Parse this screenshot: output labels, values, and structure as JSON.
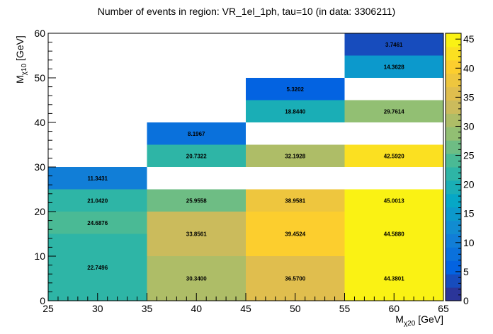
{
  "chart_data": {
    "type": "heatmap",
    "title": "Number of events in region: VR_1el_1ph, tau=10 (in data: 3306211)",
    "xlabel": {
      "main": "M",
      "sub": "χ20",
      "unit": " [GeV]"
    },
    "ylabel": {
      "main": "M",
      "sub": "χ10",
      "unit": " [GeV]"
    },
    "xlim": [
      25,
      65
    ],
    "ylim": [
      0,
      60
    ],
    "x_ticks": [
      25,
      30,
      35,
      40,
      45,
      50,
      55,
      60,
      65
    ],
    "y_ticks": [
      0,
      10,
      20,
      30,
      40,
      50,
      60
    ],
    "zlim": [
      0,
      46
    ],
    "z_ticks": [
      0,
      5,
      10,
      15,
      20,
      25,
      30,
      35,
      40,
      45
    ],
    "colorscale": [
      "#352a87",
      "#0363e1",
      "#1485d4",
      "#06a7c6",
      "#38b99e",
      "#92bf73",
      "#d9ba56",
      "#fcce2e",
      "#f9fb0e"
    ],
    "cells": [
      {
        "x0": 25,
        "x1": 35,
        "y0": 0,
        "y1": 15,
        "value": "22.7496"
      },
      {
        "x0": 25,
        "x1": 35,
        "y0": 15,
        "y1": 20,
        "value": "24.6876"
      },
      {
        "x0": 25,
        "x1": 35,
        "y0": 20,
        "y1": 25,
        "value": "21.0420"
      },
      {
        "x0": 25,
        "x1": 35,
        "y0": 25,
        "y1": 30,
        "value": "11.3431"
      },
      {
        "x0": 35,
        "x1": 45,
        "y0": 0,
        "y1": 10,
        "value": "30.3400"
      },
      {
        "x0": 35,
        "x1": 45,
        "y0": 10,
        "y1": 20,
        "value": "33.8561"
      },
      {
        "x0": 35,
        "x1": 45,
        "y0": 20,
        "y1": 25,
        "value": "25.9558"
      },
      {
        "x0": 35,
        "x1": 45,
        "y0": 30,
        "y1": 35,
        "value": "20.7322"
      },
      {
        "x0": 35,
        "x1": 45,
        "y0": 35,
        "y1": 40,
        "value": "8.1967"
      },
      {
        "x0": 45,
        "x1": 55,
        "y0": 0,
        "y1": 10,
        "value": "36.5700"
      },
      {
        "x0": 45,
        "x1": 55,
        "y0": 10,
        "y1": 20,
        "value": "39.4524"
      },
      {
        "x0": 45,
        "x1": 55,
        "y0": 20,
        "y1": 25,
        "value": "38.9581"
      },
      {
        "x0": 45,
        "x1": 55,
        "y0": 30,
        "y1": 35,
        "value": "32.1928"
      },
      {
        "x0": 45,
        "x1": 55,
        "y0": 40,
        "y1": 45,
        "value": "18.8440"
      },
      {
        "x0": 45,
        "x1": 55,
        "y0": 45,
        "y1": 50,
        "value": "5.3202"
      },
      {
        "x0": 55,
        "x1": 65,
        "y0": 0,
        "y1": 10,
        "value": "44.3801"
      },
      {
        "x0": 55,
        "x1": 65,
        "y0": 10,
        "y1": 20,
        "value": "44.5880"
      },
      {
        "x0": 55,
        "x1": 65,
        "y0": 20,
        "y1": 25,
        "value": "45.0013"
      },
      {
        "x0": 55,
        "x1": 65,
        "y0": 30,
        "y1": 35,
        "value": "42.5920"
      },
      {
        "x0": 55,
        "x1": 65,
        "y0": 40,
        "y1": 45,
        "value": "29.7614"
      },
      {
        "x0": 55,
        "x1": 65,
        "y0": 50,
        "y1": 55,
        "value": "14.3628"
      },
      {
        "x0": 55,
        "x1": 65,
        "y0": 55,
        "y1": 60,
        "value": "3.7461"
      }
    ]
  }
}
